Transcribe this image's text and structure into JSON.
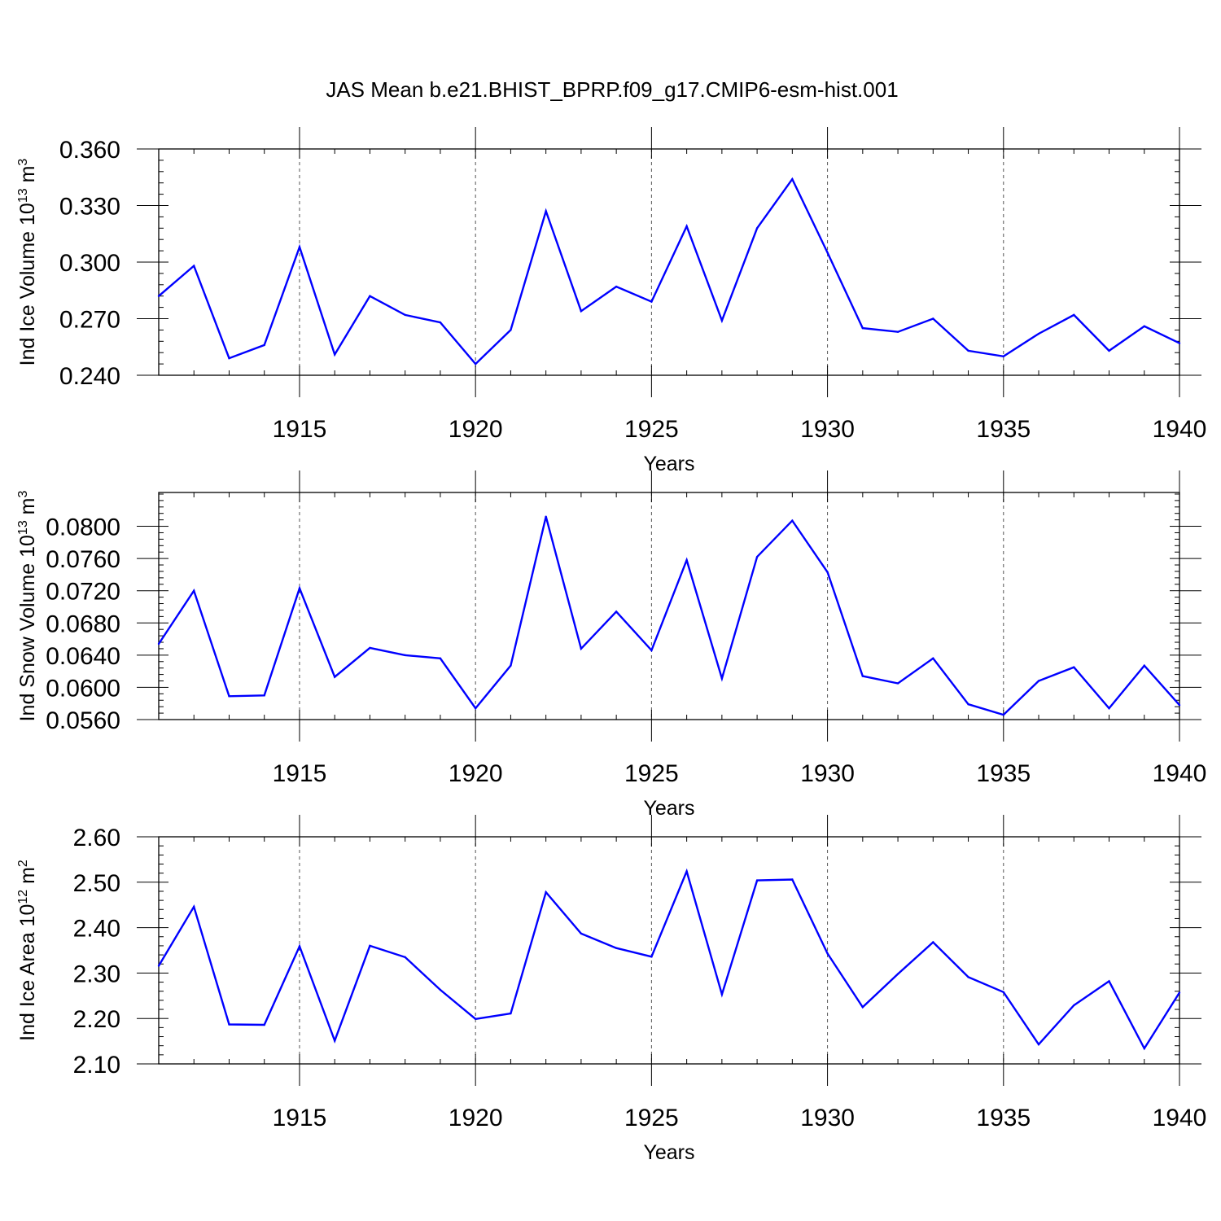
{
  "title": "JAS Mean b.e21.BHIST_BPRP.f09_g17.CMIP6-esm-hist.001",
  "line_color": "#0000ff",
  "chart_data": [
    {
      "type": "line",
      "ylabel": "Ind Ice Volume 10",
      "ylabel_exp": "13",
      "ylabel_unit": " m",
      "ylabel_unit_exp": "3",
      "xlabel": "Years",
      "xlim": [
        1911,
        1940
      ],
      "ylim": [
        0.24,
        0.36
      ],
      "yticks": [
        0.24,
        0.27,
        0.3,
        0.33,
        0.36
      ],
      "ytick_labels": [
        "0.240",
        "0.270",
        "0.300",
        "0.330",
        "0.360"
      ],
      "xticks": [
        1915,
        1920,
        1925,
        1930,
        1935,
        1940
      ],
      "xtick_labels": [
        "1915",
        "1920",
        "1925",
        "1930",
        "1935",
        "1940"
      ],
      "grid": "vertical dashed at major ticks",
      "x": [
        1911,
        1912,
        1913,
        1914,
        1915,
        1916,
        1917,
        1918,
        1919,
        1920,
        1921,
        1922,
        1923,
        1924,
        1925,
        1926,
        1927,
        1928,
        1929,
        1930,
        1931,
        1932,
        1933,
        1934,
        1935,
        1936,
        1937,
        1938,
        1939,
        1940
      ],
      "values": [
        0.282,
        0.298,
        0.249,
        0.256,
        0.308,
        0.251,
        0.282,
        0.272,
        0.268,
        0.246,
        0.264,
        0.327,
        0.274,
        0.287,
        0.279,
        0.319,
        0.269,
        0.318,
        0.344,
        0.305,
        0.265,
        0.263,
        0.27,
        0.253,
        0.25,
        0.262,
        0.272,
        0.253,
        0.266,
        0.257
      ]
    },
    {
      "type": "line",
      "ylabel": "Ind Snow Volume 10",
      "ylabel_exp": "13",
      "ylabel_unit": " m",
      "ylabel_unit_exp": "3",
      "xlabel": "Years",
      "xlim": [
        1911,
        1940
      ],
      "ylim": [
        0.056,
        0.0842
      ],
      "yticks": [
        0.056,
        0.06,
        0.064,
        0.068,
        0.072,
        0.076,
        0.08
      ],
      "ytick_labels": [
        "0.0560",
        "0.0600",
        "0.0640",
        "0.0680",
        "0.0720",
        "0.0760",
        "0.0800"
      ],
      "xticks": [
        1915,
        1920,
        1925,
        1930,
        1935,
        1940
      ],
      "xtick_labels": [
        "1915",
        "1920",
        "1925",
        "1930",
        "1935",
        "1940"
      ],
      "grid": "vertical dashed at major ticks",
      "x": [
        1911,
        1912,
        1913,
        1914,
        1915,
        1916,
        1917,
        1918,
        1919,
        1920,
        1921,
        1922,
        1923,
        1924,
        1925,
        1926,
        1927,
        1928,
        1929,
        1930,
        1931,
        1932,
        1933,
        1934,
        1935,
        1936,
        1937,
        1938,
        1939,
        1940
      ],
      "values": [
        0.0654,
        0.072,
        0.0589,
        0.059,
        0.0723,
        0.0613,
        0.0649,
        0.064,
        0.0636,
        0.0574,
        0.0627,
        0.0812,
        0.0648,
        0.0694,
        0.0646,
        0.0758,
        0.0611,
        0.0762,
        0.0807,
        0.0743,
        0.0614,
        0.0605,
        0.0636,
        0.0579,
        0.0566,
        0.0608,
        0.0625,
        0.0574,
        0.0627,
        0.0578
      ]
    },
    {
      "type": "line",
      "ylabel": "Ind Ice Area 10",
      "ylabel_exp": "12",
      "ylabel_unit": " m",
      "ylabel_unit_exp": "2",
      "xlabel": "Years",
      "xlim": [
        1911,
        1940
      ],
      "ylim": [
        2.1,
        2.6
      ],
      "yticks": [
        2.1,
        2.2,
        2.3,
        2.4,
        2.5,
        2.6
      ],
      "ytick_labels": [
        "2.10",
        "2.20",
        "2.30",
        "2.40",
        "2.50",
        "2.60"
      ],
      "xticks": [
        1915,
        1920,
        1925,
        1930,
        1935,
        1940
      ],
      "xtick_labels": [
        "1915",
        "1920",
        "1925",
        "1930",
        "1935",
        "1940"
      ],
      "grid": "vertical dashed at major ticks",
      "x": [
        1911,
        1912,
        1913,
        1914,
        1915,
        1916,
        1917,
        1918,
        1919,
        1920,
        1921,
        1922,
        1923,
        1924,
        1925,
        1926,
        1927,
        1928,
        1929,
        1930,
        1931,
        1932,
        1933,
        1934,
        1935,
        1936,
        1937,
        1938,
        1939,
        1940
      ],
      "values": [
        2.316,
        2.446,
        2.187,
        2.186,
        2.359,
        2.151,
        2.36,
        2.335,
        2.263,
        2.199,
        2.211,
        2.478,
        2.387,
        2.355,
        2.336,
        2.524,
        2.253,
        2.504,
        2.506,
        2.343,
        2.225,
        2.298,
        2.368,
        2.291,
        2.258,
        2.143,
        2.229,
        2.282,
        2.134,
        2.257
      ]
    }
  ]
}
